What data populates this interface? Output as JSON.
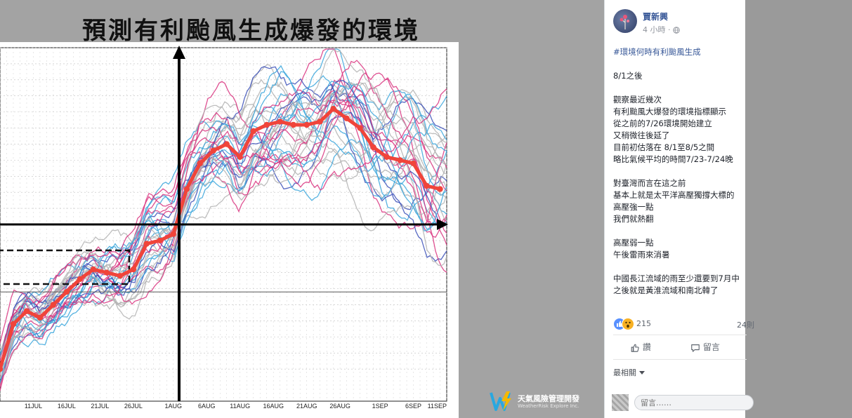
{
  "slide": {
    "title": "預測有利颱風生成爆發的環境",
    "brand_name": "天氣風險管理開發",
    "brand_sub": "WeatherRisk Explore Inc.",
    "brand_color": "#f5b800",
    "brand_accent": "#29a8e0"
  },
  "chart_data": {
    "type": "line",
    "x_ticks": [
      "11JUL",
      "16JUL",
      "21JUL",
      "26JUL",
      "1AUG",
      "6AUG",
      "11AUG",
      "16AUG",
      "21AUG",
      "26AUG",
      "1SEP",
      "6SEP",
      "11SEP"
    ],
    "xlim": [
      "2020-07-06",
      "2020-09-11"
    ],
    "ylim": [
      -3,
      2.5
    ],
    "reference_y": -1.3,
    "zero_date": "2020-08-01",
    "colors": {
      "mean": "#f0443a",
      "members_blue": "#3aa6dc",
      "members_pink": "#d9327f",
      "members_gray": "#b3b3b3",
      "members_navy": "#3a4fb8"
    },
    "series": [
      {
        "role": "ensemble-mean",
        "x": [
          "2020-07-06",
          "2020-07-08",
          "2020-07-10",
          "2020-07-12",
          "2020-07-14",
          "2020-07-16",
          "2020-07-18",
          "2020-07-20",
          "2020-07-22",
          "2020-07-24",
          "2020-07-26",
          "2020-07-28",
          "2020-07-30",
          "2020-08-01",
          "2020-08-03",
          "2020-08-05",
          "2020-08-07",
          "2020-08-09",
          "2020-08-11",
          "2020-08-13",
          "2020-08-15",
          "2020-08-17",
          "2020-08-19",
          "2020-08-21",
          "2020-08-23",
          "2020-08-25",
          "2020-08-27",
          "2020-08-29",
          "2020-08-31",
          "2020-09-02",
          "2020-09-04",
          "2020-09-06",
          "2020-09-08",
          "2020-09-10"
        ],
        "y": [
          -2.5,
          -1.8,
          -1.6,
          -1.7,
          -1.5,
          -1.3,
          -1.1,
          -0.95,
          -1.0,
          -1.05,
          -0.95,
          -0.55,
          -0.5,
          -0.4,
          0.3,
          0.7,
          0.9,
          1.0,
          0.8,
          1.2,
          1.3,
          1.35,
          1.3,
          1.3,
          1.35,
          1.55,
          1.4,
          1.25,
          0.95,
          0.8,
          0.75,
          0.7,
          0.35,
          0.3
        ]
      }
    ]
  },
  "post": {
    "author": "賈新興",
    "time": "4 小時",
    "lines": [
      "#環境何時有利颱風生成",
      "",
      "8/1之後",
      "",
      "觀察最近幾次",
      "有利颱風大爆發的環境指標顯示",
      "從之前的7/26環境開始建立",
      "又稍微往後延了",
      "目前初估落在 8/1至8/5之間",
      "略比氣候平均的時間7/23-7/24晚",
      "",
      "對臺灣而言在這之前",
      "基本上就是太平洋高壓獨撐大標的",
      "高壓強一點",
      "我們就熱翻",
      "",
      "高壓弱一點",
      "午後雷雨來消暑",
      "",
      "中國長江流域的雨至少還要到7月中",
      "之後就是黃淮流域和南北韓了"
    ],
    "reaction_count": "215",
    "reply_count": "24則",
    "like_label": "讚",
    "comment_label": "留言",
    "sort_label": "最相關",
    "comment_placeholder": "留言……"
  }
}
